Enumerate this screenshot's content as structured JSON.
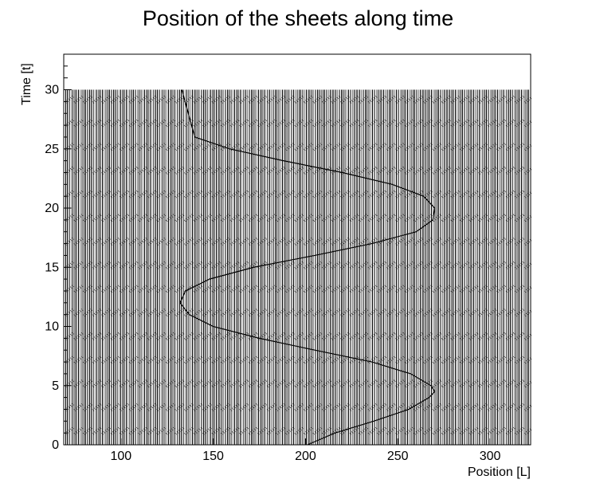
{
  "chart_data": {
    "type": "line",
    "title": "Position of the sheets along time",
    "xlabel": "Position [L]",
    "ylabel": "Time [t]",
    "xlim": [
      69,
      322
    ],
    "ylim": [
      0,
      33
    ],
    "x_ticks": [
      100,
      150,
      200,
      250,
      300
    ],
    "y_ticks": [
      0,
      5,
      10,
      15,
      20,
      25,
      30
    ],
    "x_tick_labels": [
      "100",
      "150",
      "200",
      "250",
      "300"
    ],
    "y_tick_labels": [
      "0",
      "5",
      "10",
      "15",
      "20",
      "25",
      "30"
    ],
    "grid": false,
    "legend": "none",
    "sheets": {
      "count": 254,
      "start_position": 70,
      "end_position": 322,
      "t_max": 30,
      "trace_pattern": "thin vertical worldlines with small periodic dashes/perturbations"
    },
    "series": [
      {
        "values_x": [
          201,
          216,
          237,
          256,
          267,
          270,
          268,
          257,
          236,
          205,
          175,
          150,
          137,
          132,
          135,
          148,
          172,
          205,
          236,
          260,
          269,
          270,
          264,
          247,
          220,
          188,
          159,
          140,
          133
        ],
        "values_t": [
          0,
          1,
          2,
          3,
          4,
          4.5,
          5,
          6,
          7,
          8,
          9,
          10,
          11,
          12,
          13,
          14,
          15,
          16,
          17,
          18,
          19,
          20,
          21,
          22,
          23,
          24,
          25,
          26,
          30
        ]
      }
    ],
    "colors": {
      "axis": "#000000",
      "sheet_line": "#000000",
      "trajectory": "#000000"
    }
  }
}
